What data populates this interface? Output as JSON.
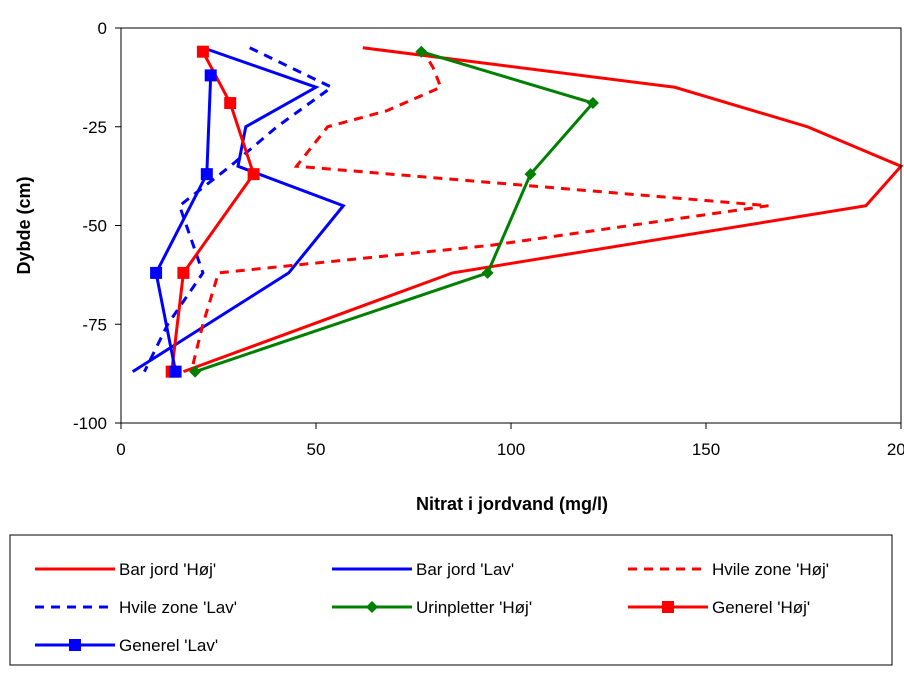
{
  "chart_data": {
    "type": "line",
    "xlabel": "Nitrat i jordvand (mg/l)",
    "ylabel": "Dybde (cm)",
    "xlim": [
      0,
      200
    ],
    "ylim": [
      -100,
      0
    ],
    "xticks": [
      0,
      50,
      100,
      150,
      200
    ],
    "yticks": [
      0,
      -25,
      -50,
      -75,
      -100
    ],
    "grid": false,
    "legend_position": "bottom",
    "series": [
      {
        "name": "Bar jord 'Høj'",
        "color": "#ff0000",
        "dash": "solid",
        "marker": "none",
        "points": [
          [
            62,
            -5
          ],
          [
            142,
            -15
          ],
          [
            176,
            -25
          ],
          [
            200,
            -35
          ],
          [
            191,
            -45
          ],
          [
            85,
            -62
          ],
          [
            16,
            -87
          ]
        ]
      },
      {
        "name": "Bar jord 'Lav'",
        "color": "#0000ff",
        "dash": "solid",
        "marker": "none",
        "points": [
          [
            21,
            -5
          ],
          [
            50,
            -15
          ],
          [
            32,
            -25
          ],
          [
            30,
            -35
          ],
          [
            57,
            -45
          ],
          [
            43,
            -62
          ],
          [
            3,
            -87
          ]
        ]
      },
      {
        "name": "Hvile zone 'Høj'",
        "color": "#ff0000",
        "dash": "dashed",
        "marker": "none",
        "points": [
          [
            77,
            -5
          ],
          [
            80,
            -10
          ],
          [
            82,
            -15
          ],
          [
            68,
            -21
          ],
          [
            53,
            -25
          ],
          [
            45,
            -35
          ],
          [
            166,
            -45
          ],
          [
            95,
            -55
          ],
          [
            25,
            -62
          ],
          [
            21,
            -75
          ],
          [
            18,
            -87
          ]
        ]
      },
      {
        "name": "Hvile zone 'Lav'",
        "color": "#0000ff",
        "dash": "dashed",
        "marker": "none",
        "points": [
          [
            33,
            -5
          ],
          [
            54,
            -15
          ],
          [
            40,
            -25
          ],
          [
            28,
            -35
          ],
          [
            15,
            -45
          ],
          [
            21,
            -62
          ],
          [
            12,
            -75
          ],
          [
            6,
            -87
          ]
        ]
      },
      {
        "name": "Urinpletter 'Høj'",
        "color": "#008000",
        "dash": "solid",
        "marker": "diamond",
        "points": [
          [
            77,
            -6
          ],
          [
            121,
            -19
          ],
          [
            105,
            -37
          ],
          [
            94,
            -62
          ],
          [
            19,
            -87
          ]
        ]
      },
      {
        "name": "Generel 'Høj'",
        "color": "#ff0000",
        "dash": "solid",
        "marker": "square",
        "points": [
          [
            21,
            -6
          ],
          [
            28,
            -19
          ],
          [
            34,
            -37
          ],
          [
            16,
            -62
          ],
          [
            13,
            -87
          ]
        ]
      },
      {
        "name": "Generel 'Lav'",
        "color": "#0000ff",
        "dash": "solid",
        "marker": "square",
        "points": [
          [
            23,
            -12
          ],
          [
            22,
            -37
          ],
          [
            9,
            -62
          ],
          [
            14,
            -87
          ]
        ]
      }
    ]
  }
}
